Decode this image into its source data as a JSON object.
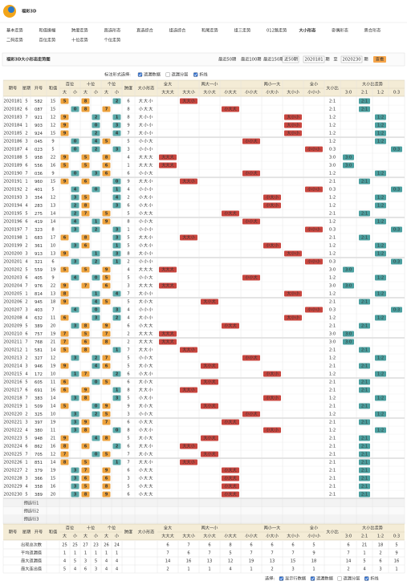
{
  "header": {
    "title": "福彩3D"
  },
  "nav": {
    "row1": [
      "基本走势",
      "和值振幅",
      "跨度走势",
      "直选形态",
      "直选综合",
      "组选综合",
      "和尾走势",
      "组三走势",
      "012路走势",
      "大小形态",
      "奇偶形态",
      "质合形态"
    ],
    "row2": [
      "二码走势",
      "百位走势",
      "十位走势",
      "个位走势"
    ],
    "active_index": 9
  },
  "toolbar": {
    "title": "福彩3D大小形态走势图",
    "recent": [
      "最近50期",
      "最近100期",
      "最近150期"
    ],
    "select": "近50期",
    "from": "2020181",
    "period": "期",
    "to_label": "至",
    "to": "2020230",
    "button": "查看"
  },
  "options": {
    "label": "标注形式选择:",
    "items": [
      {
        "text": "遗漏数据",
        "checked": true
      },
      {
        "text": "遗漏分层",
        "checked": false
      },
      {
        "text": "折线",
        "checked": true
      }
    ]
  },
  "table": {
    "headers": {
      "issue": "期号",
      "week": "星期",
      "number": "开号",
      "sum": "和值",
      "positions": [
        "百位",
        "十位",
        "个位"
      ],
      "big": "大",
      "small": "小",
      "span": "跨度",
      "shape": "大小形态",
      "groups": [
        "全大",
        "两大一小",
        "两小一大",
        "全小"
      ],
      "pattern_cols": [
        "大大大",
        "大大小",
        "大小大",
        "小大大",
        "小小大",
        "小大小",
        "大小小",
        "小小小"
      ],
      "ratio": "大小比",
      "ratio_trend": "大小比走势",
      "ratio_cols": [
        "3:0",
        "2:1",
        "1:2",
        "0:3"
      ]
    },
    "rows": [
      {
        "issue": "2020181",
        "week": 5,
        "digits": [
          5,
          8,
          2
        ],
        "sum": 15,
        "span": 6,
        "pattern": "大大小",
        "ratio": "2:1"
      },
      {
        "issue": "2020182",
        "week": 6,
        "digits": [
          0,
          8,
          7
        ],
        "sum": 15,
        "span": 8,
        "pattern": "小大大",
        "ratio": "2:1"
      },
      {
        "issue": "2020183",
        "week": 7,
        "digits": [
          9,
          2,
          1
        ],
        "sum": 12,
        "span": 8,
        "pattern": "大小小",
        "ratio": "1:2"
      },
      {
        "issue": "2020184",
        "week": 1,
        "digits": [
          9,
          0,
          3
        ],
        "sum": 12,
        "span": 9,
        "pattern": "大小小",
        "ratio": "1:2"
      },
      {
        "issue": "2020185",
        "week": 2,
        "digits": [
          9,
          2,
          4
        ],
        "sum": 15,
        "span": 7,
        "pattern": "大小小",
        "ratio": "1:2"
      },
      {
        "issue": "2020186",
        "week": 3,
        "digits": [
          0,
          4,
          5
        ],
        "sum": 9,
        "span": 5,
        "pattern": "小小大",
        "ratio": "1:2"
      },
      {
        "issue": "2020187",
        "week": 4,
        "digits": [
          0,
          2,
          3
        ],
        "sum": 5,
        "span": 3,
        "pattern": "小小小",
        "ratio": "0:3"
      },
      {
        "issue": "2020188",
        "week": 5,
        "digits": [
          9,
          5,
          8
        ],
        "sum": 22,
        "span": 4,
        "pattern": "大大大",
        "ratio": "3:0"
      },
      {
        "issue": "2020189",
        "week": 6,
        "digits": [
          5,
          5,
          6
        ],
        "sum": 16,
        "span": 1,
        "pattern": "大大大",
        "ratio": "3:0"
      },
      {
        "issue": "2020190",
        "week": 7,
        "digits": [
          0,
          3,
          6
        ],
        "sum": 9,
        "span": 6,
        "pattern": "小小大",
        "ratio": "1:2"
      },
      {
        "issue": "2020191",
        "week": 1,
        "digits": [
          9,
          6,
          0
        ],
        "sum": 15,
        "span": 9,
        "pattern": "大大小",
        "ratio": "2:1"
      },
      {
        "issue": "2020192",
        "week": 2,
        "digits": [
          4,
          0,
          1
        ],
        "sum": 5,
        "span": 4,
        "pattern": "小小小",
        "ratio": "0:3"
      },
      {
        "issue": "2020193",
        "week": 3,
        "digits": [
          3,
          5,
          4
        ],
        "sum": 12,
        "span": 2,
        "pattern": "小大小",
        "ratio": "1:2"
      },
      {
        "issue": "2020194",
        "week": 4,
        "digits": [
          2,
          8,
          3
        ],
        "sum": 13,
        "span": 6,
        "pattern": "小大小",
        "ratio": "1:2"
      },
      {
        "issue": "2020195",
        "week": 5,
        "digits": [
          2,
          7,
          5
        ],
        "sum": 14,
        "span": 5,
        "pattern": "小大大",
        "ratio": "2:1"
      },
      {
        "issue": "2020196",
        "week": 6,
        "digits": [
          4,
          1,
          9
        ],
        "sum": 14,
        "span": 8,
        "pattern": "小小大",
        "ratio": "1:2"
      },
      {
        "issue": "2020197",
        "week": 7,
        "digits": [
          3,
          2,
          3
        ],
        "sum": 8,
        "span": 1,
        "pattern": "小小小",
        "ratio": "0:3"
      },
      {
        "issue": "2020198",
        "week": 1,
        "digits": [
          6,
          8,
          3
        ],
        "sum": 17,
        "span": 5,
        "pattern": "大大小",
        "ratio": "2:1"
      },
      {
        "issue": "2020199",
        "week": 2,
        "digits": [
          3,
          6,
          1
        ],
        "sum": 10,
        "span": 5,
        "pattern": "小大小",
        "ratio": "1:2"
      },
      {
        "issue": "2020200",
        "week": 3,
        "digits": [
          9,
          1,
          3
        ],
        "sum": 13,
        "span": 8,
        "pattern": "大小小",
        "ratio": "1:2"
      },
      {
        "issue": "2020201",
        "week": 4,
        "digits": [
          3,
          2,
          1
        ],
        "sum": 6,
        "span": 2,
        "pattern": "小小小",
        "ratio": "0:3"
      },
      {
        "issue": "2020202",
        "week": 5,
        "digits": [
          5,
          5,
          9
        ],
        "sum": 19,
        "span": 4,
        "pattern": "大大大",
        "ratio": "3:0"
      },
      {
        "issue": "2020203",
        "week": 6,
        "digits": [
          4,
          0,
          5
        ],
        "sum": 9,
        "span": 5,
        "pattern": "小小大",
        "ratio": "1:2"
      },
      {
        "issue": "2020204",
        "week": 7,
        "digits": [
          9,
          7,
          6
        ],
        "sum": 22,
        "span": 3,
        "pattern": "大大大",
        "ratio": "3:0"
      },
      {
        "issue": "2020205",
        "week": 1,
        "digits": [
          8,
          1,
          4
        ],
        "sum": 13,
        "span": 7,
        "pattern": "大小小",
        "ratio": "1:2"
      },
      {
        "issue": "2020206",
        "week": 2,
        "digits": [
          9,
          4,
          5
        ],
        "sum": 18,
        "span": 5,
        "pattern": "大小大",
        "ratio": "2:1"
      },
      {
        "issue": "2020207",
        "week": 3,
        "digits": [
          4,
          0,
          3
        ],
        "sum": 7,
        "span": 4,
        "pattern": "小小小",
        "ratio": "0:3"
      },
      {
        "issue": "2020208",
        "week": 4,
        "digits": [
          6,
          3,
          2
        ],
        "sum": 11,
        "span": 4,
        "pattern": "大小小",
        "ratio": "1:2"
      },
      {
        "issue": "2020209",
        "week": 5,
        "digits": [
          3,
          8,
          9
        ],
        "sum": 20,
        "span": 6,
        "pattern": "小大大",
        "ratio": "2:1"
      },
      {
        "issue": "2020210",
        "week": 6,
        "digits": [
          7,
          5,
          7
        ],
        "sum": 19,
        "span": 2,
        "pattern": "大大大",
        "ratio": "3:0"
      },
      {
        "issue": "2020211",
        "week": 7,
        "digits": [
          7,
          6,
          8
        ],
        "sum": 21,
        "span": 2,
        "pattern": "大大大",
        "ratio": "3:0"
      },
      {
        "issue": "2020212",
        "week": 1,
        "digits": [
          5,
          8,
          1
        ],
        "sum": 14,
        "span": 7,
        "pattern": "大大小",
        "ratio": "2:1"
      },
      {
        "issue": "2020213",
        "week": 2,
        "digits": [
          3,
          2,
          7
        ],
        "sum": 12,
        "span": 5,
        "pattern": "小小大",
        "ratio": "1:2"
      },
      {
        "issue": "2020214",
        "week": 3,
        "digits": [
          9,
          4,
          6
        ],
        "sum": 19,
        "span": 5,
        "pattern": "大小大",
        "ratio": "2:1"
      },
      {
        "issue": "2020215",
        "week": 4,
        "digits": [
          1,
          7,
          2
        ],
        "sum": 10,
        "span": 6,
        "pattern": "小大小",
        "ratio": "1:2"
      },
      {
        "issue": "2020216",
        "week": 5,
        "digits": [
          6,
          0,
          5
        ],
        "sum": 11,
        "span": 6,
        "pattern": "大小大",
        "ratio": "2:1"
      },
      {
        "issue": "2020217",
        "week": 6,
        "digits": [
          6,
          9,
          1
        ],
        "sum": 16,
        "span": 8,
        "pattern": "大大小",
        "ratio": "2:1"
      },
      {
        "issue": "2020218",
        "week": 7,
        "digits": [
          3,
          8,
          3
        ],
        "sum": 14,
        "span": 5,
        "pattern": "小大小",
        "ratio": "1:2"
      },
      {
        "issue": "2020219",
        "week": 1,
        "digits": [
          5,
          0,
          9
        ],
        "sum": 14,
        "span": 9,
        "pattern": "大小大",
        "ratio": "2:1"
      },
      {
        "issue": "2020220",
        "week": 2,
        "digits": [
          3,
          2,
          5
        ],
        "sum": 10,
        "span": 3,
        "pattern": "小小大",
        "ratio": "1:2"
      },
      {
        "issue": "2020221",
        "week": 3,
        "digits": [
          3,
          9,
          7
        ],
        "sum": 19,
        "span": 6,
        "pattern": "小大大",
        "ratio": "2:1"
      },
      {
        "issue": "2020222",
        "week": 4,
        "digits": [
          3,
          8,
          0
        ],
        "sum": 11,
        "span": 8,
        "pattern": "小大小",
        "ratio": "1:2"
      },
      {
        "issue": "2020223",
        "week": 5,
        "digits": [
          9,
          4,
          8
        ],
        "sum": 21,
        "span": 5,
        "pattern": "大小大",
        "ratio": "2:1"
      },
      {
        "issue": "2020224",
        "week": 6,
        "digits": [
          8,
          6,
          2
        ],
        "sum": 16,
        "span": 6,
        "pattern": "大大小",
        "ratio": "2:1"
      },
      {
        "issue": "2020225",
        "week": 7,
        "digits": [
          7,
          0,
          5
        ],
        "sum": 12,
        "span": 7,
        "pattern": "大小大",
        "ratio": "2:1"
      },
      {
        "issue": "2020226",
        "week": 1,
        "digits": [
          8,
          5,
          1
        ],
        "sum": 14,
        "span": 7,
        "pattern": "大大小",
        "ratio": "2:1"
      },
      {
        "issue": "2020227",
        "week": 2,
        "digits": [
          3,
          7,
          9
        ],
        "sum": 19,
        "span": 6,
        "pattern": "小大大",
        "ratio": "2:1"
      },
      {
        "issue": "2020228",
        "week": 3,
        "digits": [
          3,
          6,
          6
        ],
        "sum": 15,
        "span": 3,
        "pattern": "小大大",
        "ratio": "2:1"
      },
      {
        "issue": "2020229",
        "week": 4,
        "digits": [
          3,
          5,
          8
        ],
        "sum": 16,
        "span": 5,
        "pattern": "小大大",
        "ratio": "2:1"
      },
      {
        "issue": "2020230",
        "week": 5,
        "digits": [
          3,
          8,
          9
        ],
        "sum": 20,
        "span": 6,
        "pattern": "小大大",
        "ratio": "2:1"
      }
    ],
    "preselect": [
      "预选行1",
      "预选行2",
      "预选行3"
    ],
    "stats": [
      {
        "label": "出现总次数",
        "values": [
          25,
          25,
          27,
          23,
          26,
          24,
          6,
          7,
          6,
          8,
          6,
          6,
          6,
          5,
          6,
          21,
          18,
          5
        ]
      },
      {
        "label": "平均遗漏值",
        "values": [
          1,
          1,
          1,
          1,
          1,
          1,
          7,
          6,
          7,
          5,
          7,
          7,
          7,
          9,
          7,
          1,
          2,
          9
        ]
      },
      {
        "label": "最大遗漏值",
        "values": [
          4,
          5,
          3,
          5,
          4,
          4,
          14,
          16,
          13,
          12,
          19,
          13,
          15,
          18,
          14,
          5,
          6,
          16
        ]
      },
      {
        "label": "最大连出值",
        "values": [
          5,
          4,
          6,
          3,
          4,
          4,
          2,
          1,
          1,
          4,
          1,
          2,
          3,
          1,
          2,
          4,
          3,
          1
        ]
      }
    ]
  },
  "footer": {
    "label": "选择:",
    "items": [
      {
        "text": "显示行数据",
        "checked": true
      },
      {
        "text": "遗漏数据",
        "checked": true
      },
      {
        "text": "遗漏分层",
        "checked": false
      },
      {
        "text": "折线",
        "checked": true
      }
    ]
  }
}
